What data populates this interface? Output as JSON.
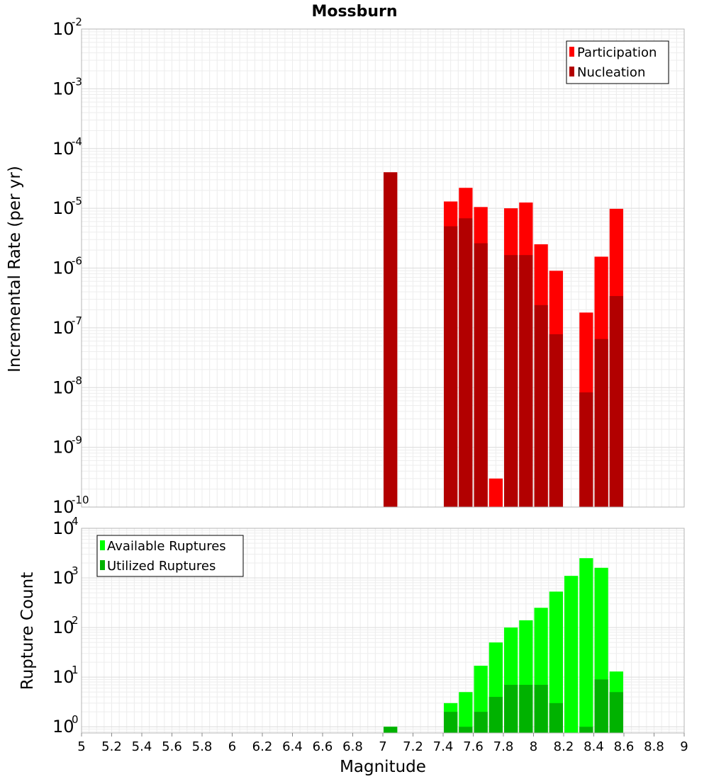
{
  "title": "Mossburn",
  "chart_data": [
    {
      "type": "bar",
      "panel": "top",
      "ylabel": "Incremental Rate (per yr)",
      "yscale": "log",
      "ylim": [
        1e-10,
        0.01
      ],
      "ytick_exponents": [
        "-10",
        "-9",
        "-8",
        "-7",
        "-6",
        "-5",
        "-4",
        "-3",
        "-2"
      ],
      "xlim": [
        5,
        9
      ],
      "bar_width": 0.1,
      "grid": true,
      "legend_position": "top-right",
      "overlay": true,
      "series": [
        {
          "name": "Participation",
          "color": "#ff0000",
          "x": [
            7.05,
            7.45,
            7.55,
            7.65,
            7.75,
            7.85,
            7.95,
            8.05,
            8.15,
            8.35,
            8.45,
            8.55
          ],
          "values": [
            4e-05,
            1.3e-05,
            2.2e-05,
            1.05e-05,
            3e-10,
            1e-05,
            1.25e-05,
            2.5e-06,
            9e-07,
            1.8e-07,
            1.55e-06,
            9.8e-06
          ]
        },
        {
          "name": "Nucleation",
          "color": "#b20000",
          "x": [
            7.05,
            7.45,
            7.55,
            7.65,
            7.85,
            7.95,
            8.05,
            8.15,
            8.35,
            8.45,
            8.55
          ],
          "values": [
            4e-05,
            5e-06,
            6.8e-06,
            2.6e-06,
            1.65e-06,
            1.65e-06,
            2.4e-07,
            7.8e-08,
            8.3e-09,
            6.5e-08,
            3.4e-07
          ]
        }
      ]
    },
    {
      "type": "bar",
      "panel": "bottom",
      "ylabel": "Rupture Count",
      "xlabel": "Magnitude",
      "yscale": "log",
      "ylim": [
        0.75,
        10000
      ],
      "ytick_exponents": [
        "0",
        "1",
        "2",
        "3",
        "4"
      ],
      "xlim": [
        5,
        9
      ],
      "xticks": [
        "5",
        "5.2",
        "5.4",
        "5.6",
        "5.8",
        "6",
        "6.2",
        "6.4",
        "6.6",
        "6.8",
        "7",
        "7.2",
        "7.4",
        "7.6",
        "7.8",
        "8",
        "8.2",
        "8.4",
        "8.6",
        "8.8",
        "9"
      ],
      "bar_width": 0.1,
      "grid": true,
      "legend_position": "top-left",
      "overlay": true,
      "series": [
        {
          "name": "Available Ruptures",
          "color": "#00ff00",
          "x": [
            7.05,
            7.45,
            7.55,
            7.65,
            7.75,
            7.85,
            7.95,
            8.05,
            8.15,
            8.25,
            8.35,
            8.45,
            8.55
          ],
          "values": [
            1,
            3,
            5,
            17,
            50,
            100,
            140,
            250,
            530,
            1100,
            2500,
            1600,
            13
          ]
        },
        {
          "name": "Utilized Ruptures",
          "color": "#00b200",
          "x": [
            7.05,
            7.45,
            7.55,
            7.65,
            7.75,
            7.85,
            7.95,
            8.05,
            8.15,
            8.35,
            8.45,
            8.55
          ],
          "values": [
            1,
            2,
            1,
            2,
            4,
            7,
            7,
            7,
            3,
            1,
            9,
            5
          ]
        }
      ]
    }
  ]
}
